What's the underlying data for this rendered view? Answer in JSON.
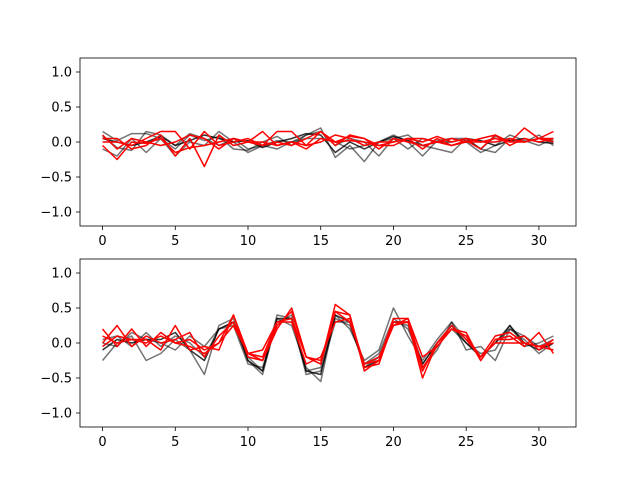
{
  "chart_data": [
    {
      "type": "line",
      "title": "",
      "xlabel": "",
      "ylabel": "",
      "xlim": [
        -1.55,
        32.55
      ],
      "ylim": [
        -1.2,
        1.2
      ],
      "xticks": [
        0,
        5,
        10,
        15,
        20,
        25,
        30
      ],
      "yticks": [
        -1.0,
        -0.5,
        0.0,
        0.5,
        1.0
      ],
      "xtick_labels": [
        "0",
        "5",
        "10",
        "15",
        "20",
        "25",
        "30"
      ],
      "ytick_labels": [
        "−1.0",
        "−0.5",
        "0.0",
        "0.5",
        "1.0"
      ],
      "grid": false,
      "series": [
        {
          "color": "#000000",
          "opacity": 0.55,
          "values": [
            0.15,
            0.02,
            0.12,
            0.12,
            0.05,
            -0.1,
            0.1,
            0.02,
            0.08,
            -0.1,
            -0.12,
            0.0,
            0.08,
            -0.05,
            0.1,
            0.2,
            -0.22,
            -0.05,
            -0.28,
            0.0,
            0.1,
            0.0,
            -0.2,
            0.02,
            0.05,
            0.05,
            -0.1,
            0.08,
            0.02,
            0.0,
            0.05,
            0.02
          ]
        },
        {
          "color": "#000000",
          "opacity": 0.55,
          "values": [
            0.08,
            -0.08,
            -0.12,
            0.15,
            0.1,
            -0.05,
            0.12,
            0.05,
            -0.05,
            0.05,
            -0.1,
            -0.05,
            0.02,
            0.0,
            0.1,
            0.15,
            -0.05,
            0.05,
            0.0,
            -0.2,
            0.05,
            0.1,
            -0.05,
            -0.1,
            -0.15,
            0.05,
            -0.1,
            -0.15,
            0.05,
            0.0,
            0.1,
            -0.05
          ]
        },
        {
          "color": "#000000",
          "opacity": 0.55,
          "values": [
            -0.1,
            -0.2,
            0.05,
            -0.15,
            0.05,
            -0.2,
            0.0,
            -0.05,
            0.15,
            0.0,
            -0.15,
            -0.05,
            -0.1,
            0.0,
            0.05,
            0.05,
            0.0,
            -0.1,
            -0.05,
            0.0,
            0.05,
            -0.1,
            0.05,
            0.0,
            0.05,
            0.0,
            -0.15,
            -0.05,
            0.1,
            0.02,
            -0.05,
            0.05
          ]
        },
        {
          "color": "#000000",
          "opacity": 0.8,
          "values": [
            0.05,
            0.0,
            -0.05,
            0.0,
            0.08,
            -0.05,
            0.02,
            0.1,
            0.05,
            0.0,
            0.02,
            -0.08,
            0.0,
            0.05,
            0.12,
            0.1,
            -0.15,
            0.0,
            -0.1,
            0.0,
            0.08,
            0.02,
            -0.05,
            0.0,
            0.0,
            0.05,
            0.02,
            -0.05,
            0.02,
            0.05,
            0.0,
            -0.02
          ]
        },
        {
          "color": "#ff0000",
          "opacity": 1.0,
          "values": [
            -0.05,
            -0.25,
            0.0,
            -0.02,
            0.05,
            -0.15,
            -0.08,
            -0.05,
            0.0,
            0.05,
            0.0,
            -0.05,
            0.15,
            0.15,
            -0.05,
            0.15,
            0.0,
            0.08,
            0.05,
            -0.1,
            0.05,
            0.0,
            -0.05,
            0.0,
            -0.05,
            0.02,
            -0.1,
            0.1,
            0.0,
            0.2,
            0.05,
            0.15
          ]
        },
        {
          "color": "#ff0000",
          "opacity": 1.0,
          "values": [
            0.05,
            0.05,
            -0.1,
            -0.05,
            0.1,
            -0.2,
            0.05,
            -0.35,
            0.1,
            -0.05,
            0.0,
            0.15,
            -0.05,
            0.0,
            -0.1,
            0.05,
            0.0,
            0.02,
            0.0,
            -0.05,
            0.0,
            0.05,
            -0.1,
            0.05,
            -0.05,
            0.0,
            0.05,
            0.1,
            -0.05,
            0.05,
            0.0,
            0.05
          ]
        },
        {
          "color": "#ff0000",
          "opacity": 1.0,
          "values": [
            0.0,
            0.0,
            -0.05,
            0.05,
            0.15,
            0.15,
            -0.1,
            0.15,
            -0.05,
            0.0,
            0.05,
            -0.05,
            0.0,
            -0.05,
            0.05,
            0.15,
            -0.05,
            0.1,
            0.05,
            -0.05,
            -0.05,
            0.05,
            0.0,
            0.08,
            0.0,
            0.05,
            0.0,
            0.0,
            0.05,
            0.0,
            0.05,
            0.0
          ]
        },
        {
          "color": "#ff0000",
          "opacity": 1.0,
          "values": [
            0.1,
            -0.1,
            0.05,
            0.0,
            -0.05,
            0.0,
            0.1,
            0.05,
            -0.1,
            0.05,
            0.0,
            0.0,
            -0.05,
            0.0,
            -0.05,
            0.0,
            0.1,
            0.05,
            -0.05,
            0.0,
            0.0,
            0.05,
            0.05,
            0.0,
            0.05,
            0.0,
            0.0,
            0.05,
            0.0,
            0.0,
            0.05,
            0.05
          ]
        }
      ]
    },
    {
      "type": "line",
      "title": "",
      "xlabel": "",
      "ylabel": "",
      "xlim": [
        -1.55,
        32.55
      ],
      "ylim": [
        -1.2,
        1.2
      ],
      "xticks": [
        0,
        5,
        10,
        15,
        20,
        25,
        30
      ],
      "yticks": [
        -1.0,
        -0.5,
        0.0,
        0.5,
        1.0
      ],
      "xtick_labels": [
        "0",
        "5",
        "10",
        "15",
        "20",
        "25",
        "30"
      ],
      "ytick_labels": [
        "−1.0",
        "−0.5",
        "0.0",
        "0.5",
        "1.0"
      ],
      "grid": false,
      "series": [
        {
          "color": "#000000",
          "opacity": 0.55,
          "values": [
            -0.25,
            0.0,
            0.1,
            -0.25,
            -0.15,
            0.05,
            -0.1,
            -0.45,
            0.25,
            0.35,
            -0.25,
            -0.45,
            0.35,
            0.25,
            -0.35,
            -0.55,
            0.4,
            0.2,
            -0.25,
            -0.1,
            0.5,
            0.1,
            -0.25,
            0.05,
            0.3,
            -0.1,
            -0.05,
            -0.25,
            0.2,
            0.05,
            -0.15,
            0.0
          ]
        },
        {
          "color": "#000000",
          "opacity": 0.55,
          "values": [
            0.0,
            -0.05,
            0.15,
            0.05,
            0.0,
            -0.1,
            0.1,
            -0.05,
            0.2,
            0.25,
            -0.3,
            -0.35,
            0.3,
            0.4,
            -0.4,
            -0.35,
            0.35,
            0.25,
            -0.3,
            -0.15,
            0.35,
            0.2,
            -0.3,
            0.0,
            0.2,
            0.0,
            -0.15,
            -0.1,
            0.25,
            -0.05,
            0.0,
            0.1
          ]
        },
        {
          "color": "#000000",
          "opacity": 0.55,
          "values": [
            0.05,
            0.1,
            -0.05,
            0.15,
            -0.05,
            0.1,
            0.0,
            -0.2,
            0.2,
            0.3,
            -0.2,
            -0.4,
            0.4,
            0.35,
            -0.45,
            -0.4,
            0.3,
            0.3,
            -0.35,
            -0.2,
            0.3,
            0.25,
            -0.35,
            -0.1,
            0.3,
            0.05,
            -0.2,
            0.0,
            0.2,
            0.1,
            -0.05,
            0.05
          ]
        },
        {
          "color": "#000000",
          "opacity": 0.8,
          "values": [
            -0.1,
            0.05,
            0.0,
            0.05,
            0.05,
            0.15,
            -0.1,
            -0.25,
            0.2,
            0.3,
            -0.25,
            -0.4,
            0.35,
            0.35,
            -0.4,
            -0.45,
            0.4,
            0.3,
            -0.35,
            -0.25,
            0.3,
            0.3,
            -0.3,
            0.0,
            0.25,
            0.0,
            -0.2,
            0.0,
            0.25,
            0.0,
            -0.1,
            0.0
          ]
        },
        {
          "color": "#ff0000",
          "opacity": 1.0,
          "values": [
            0.2,
            -0.05,
            0.2,
            -0.05,
            0.15,
            0.0,
            -0.05,
            -0.15,
            0.0,
            0.4,
            -0.2,
            -0.25,
            0.2,
            0.5,
            -0.2,
            -0.3,
            0.55,
            0.4,
            -0.35,
            -0.3,
            0.3,
            0.3,
            -0.5,
            0.0,
            0.2,
            0.15,
            -0.25,
            0.05,
            0.1,
            -0.05,
            0.15,
            -0.15
          ]
        },
        {
          "color": "#ff0000",
          "opacity": 1.0,
          "values": [
            0.1,
            0.0,
            0.05,
            0.05,
            -0.1,
            0.25,
            -0.1,
            -0.05,
            -0.1,
            0.4,
            -0.15,
            -0.25,
            0.25,
            0.45,
            -0.2,
            -0.25,
            0.45,
            0.4,
            -0.4,
            -0.25,
            0.35,
            0.35,
            -0.35,
            -0.05,
            0.2,
            0.1,
            -0.2,
            0.1,
            0.15,
            0.0,
            -0.05,
            -0.1
          ]
        },
        {
          "color": "#ff0000",
          "opacity": 1.0,
          "values": [
            0.0,
            0.25,
            -0.05,
            0.1,
            0.0,
            0.05,
            0.15,
            -0.2,
            0.1,
            0.3,
            -0.15,
            -0.1,
            0.3,
            0.35,
            -0.2,
            -0.3,
            0.45,
            0.3,
            -0.3,
            -0.25,
            0.25,
            0.3,
            -0.4,
            0.0,
            0.25,
            0.05,
            -0.2,
            0.0,
            0.0,
            0.0,
            -0.05,
            0.0
          ]
        },
        {
          "color": "#ff0000",
          "opacity": 1.0,
          "values": [
            -0.05,
            0.1,
            0.05,
            0.0,
            0.1,
            0.0,
            0.05,
            -0.1,
            0.0,
            0.25,
            -0.15,
            -0.2,
            0.3,
            0.3,
            -0.3,
            -0.2,
            0.3,
            0.35,
            -0.3,
            -0.2,
            0.25,
            0.35,
            -0.2,
            -0.05,
            0.2,
            0.1,
            -0.25,
            0.05,
            0.05,
            0.1,
            -0.1,
            0.05
          ]
        }
      ]
    }
  ]
}
